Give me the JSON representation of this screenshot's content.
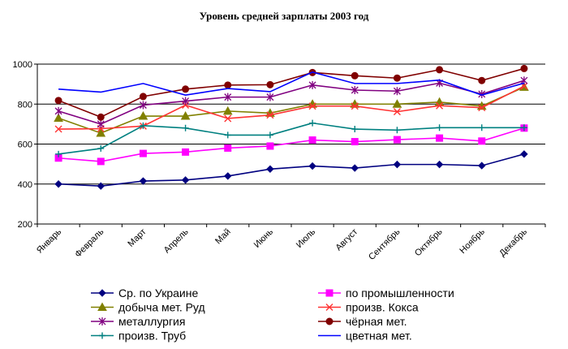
{
  "chart_data": {
    "type": "line",
    "title": "Уровень средней зарплаты 2003 год",
    "xlabel": "",
    "ylabel": "",
    "ylim": [
      200,
      1000
    ],
    "yticks": [
      200,
      400,
      600,
      800,
      1000
    ],
    "grid": "horizontal",
    "legend_position": "bottom",
    "categories": [
      "Январь",
      "Февраль",
      "Март",
      "Апрель",
      "Май",
      "Июнь",
      "Июль",
      "Август",
      "Сентябрь",
      "Октябрь",
      "Ноябрь",
      "Декабрь"
    ],
    "series": [
      {
        "name": "Ср. по Украине",
        "color": "#000080",
        "marker": "diamond",
        "values": [
          400,
          390,
          415,
          420,
          440,
          475,
          490,
          480,
          498,
          498,
          492,
          550
        ]
      },
      {
        "name": "по промышленности",
        "color": "#ff00ff",
        "marker": "square",
        "values": [
          530,
          513,
          553,
          560,
          580,
          590,
          620,
          612,
          622,
          630,
          615,
          680
        ]
      },
      {
        "name": "добыча мет. Руд",
        "color": "#808000",
        "marker": "triangle",
        "values": [
          730,
          655,
          740,
          740,
          765,
          755,
          800,
          800,
          800,
          810,
          790,
          885
        ]
      },
      {
        "name": "произв. Кокса",
        "color": "#ff3333",
        "marker": "x",
        "values": [
          675,
          677,
          690,
          795,
          728,
          745,
          790,
          790,
          762,
          792,
          782,
          890
        ]
      },
      {
        "name": "металлургия",
        "color": "#800080",
        "marker": "star",
        "values": [
          765,
          700,
          795,
          815,
          835,
          835,
          895,
          870,
          865,
          905,
          850,
          918
        ]
      },
      {
        "name": "чёрная мет.",
        "color": "#800000",
        "marker": "circle",
        "values": [
          818,
          735,
          838,
          875,
          895,
          897,
          958,
          942,
          930,
          972,
          918,
          978
        ]
      },
      {
        "name": "произв. Труб",
        "color": "#008080",
        "marker": "plus",
        "values": [
          550,
          578,
          692,
          680,
          645,
          645,
          705,
          675,
          670,
          682,
          682,
          682
        ]
      },
      {
        "name": "цветная мет.",
        "color": "#0000ff",
        "marker": "none",
        "values": [
          875,
          860,
          903,
          845,
          878,
          862,
          960,
          903,
          903,
          920,
          845,
          905
        ]
      }
    ]
  }
}
